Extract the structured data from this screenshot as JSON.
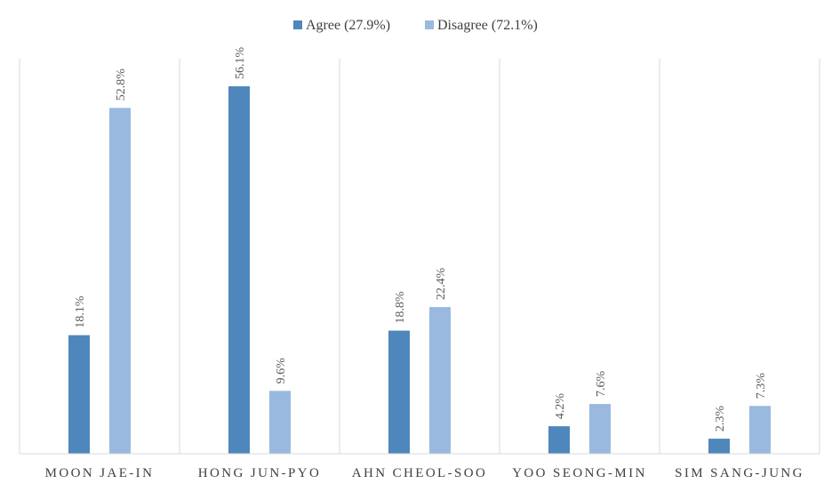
{
  "chart_data": {
    "type": "bar",
    "categories": [
      "MOON JAE-IN",
      "HONG JUN-PYO",
      "AHN CHEOL-SOO",
      "YOO SEONG-MIN",
      "SIM SANG-JUNG"
    ],
    "series": [
      {
        "name": "Agree (27.9%)",
        "color": "#4f87bd",
        "values": [
          18.1,
          56.1,
          18.8,
          4.2,
          2.3
        ],
        "labels": [
          "18.1%",
          "56.1%",
          "18.8%",
          "4.2%",
          "2.3%"
        ]
      },
      {
        "name": "Disagree (72.1%)",
        "color": "#99b9df",
        "values": [
          52.8,
          9.6,
          22.4,
          7.6,
          7.3
        ],
        "labels": [
          "52.8%",
          "9.6%",
          "22.4%",
          "7.6%",
          "7.3%"
        ]
      }
    ],
    "ylim": [
      0,
      60
    ],
    "y_axis_visible": false,
    "grid": "vertical category separators",
    "legend_position": "top-center",
    "data_labels_rotated": true
  }
}
